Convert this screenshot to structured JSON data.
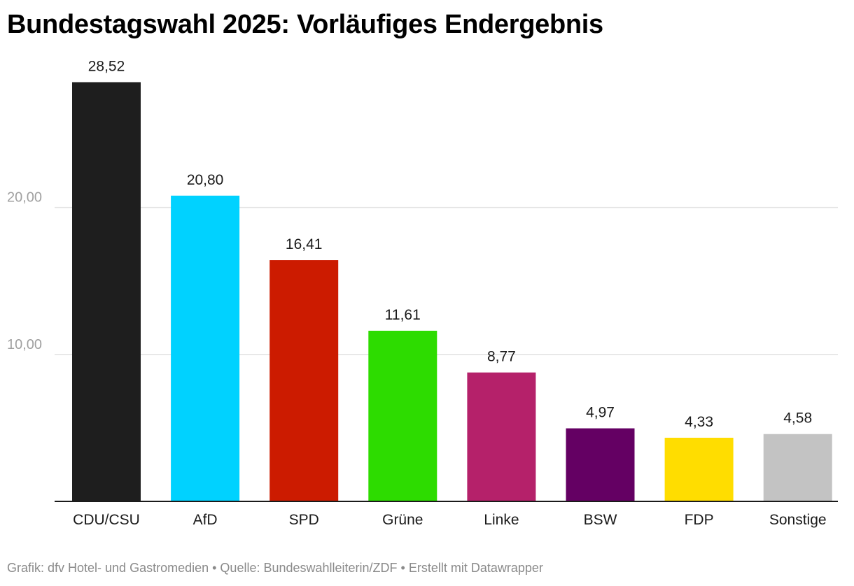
{
  "chart_data": {
    "type": "bar",
    "title": "Bundestagswahl 2025: Vorläufiges Endergebnis",
    "categories": [
      "CDU/CSU",
      "AfD",
      "SPD",
      "Grüne",
      "Linke",
      "BSW",
      "FDP",
      "Sonstige"
    ],
    "values": [
      28.52,
      20.8,
      16.41,
      11.61,
      8.77,
      4.97,
      4.33,
      4.58
    ],
    "value_labels": [
      "28,52",
      "20,80",
      "16,41",
      "11,61",
      "8,77",
      "4,97",
      "4,33",
      "4,58"
    ],
    "colors": [
      "#1e1e1e",
      "#00d2ff",
      "#cc1b00",
      "#2ddc00",
      "#b5216a",
      "#640063",
      "#ffdd00",
      "#c3c3c3"
    ],
    "yticks": [
      10,
      20
    ],
    "ytick_labels": [
      "10,00",
      "20,00"
    ],
    "ylim": [
      0,
      30
    ],
    "grid": true,
    "xlabel": "",
    "ylabel": ""
  },
  "footer": "Grafik: dfv Hotel- und Gastromedien • Quelle: Bundeswahlleiterin/ZDF • Erstellt mit Datawrapper"
}
